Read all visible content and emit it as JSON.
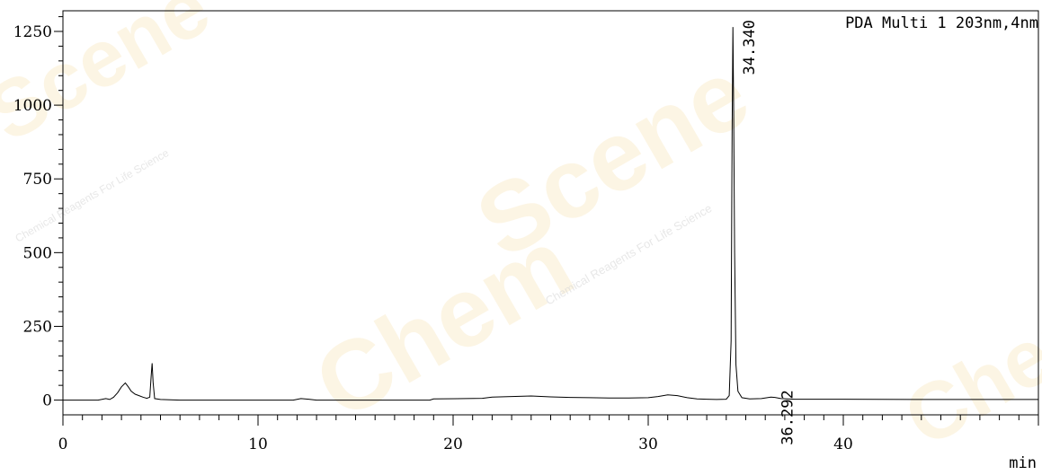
{
  "chart_data": {
    "type": "line",
    "detector_label": "PDA Multi 1 203nm,4nm",
    "x_unit": "min",
    "xlim": [
      0,
      50
    ],
    "ylim": [
      -50,
      1320
    ],
    "x_ticks": [
      0,
      10,
      20,
      30,
      40
    ],
    "y_ticks": [
      0,
      250,
      500,
      750,
      1000,
      1250
    ],
    "peaks": [
      {
        "label": "34.340",
        "rt": 34.34,
        "height": 1265
      },
      {
        "label": "36.292",
        "rt": 36.292,
        "height": 10
      }
    ],
    "series": [
      {
        "x": [
          0,
          1.8,
          2.2,
          2.4,
          2.6,
          2.8,
          3.0,
          3.2,
          3.35,
          3.5,
          3.7,
          3.9,
          4.1,
          4.3,
          4.45,
          4.52,
          4.57,
          4.62,
          4.7,
          5.0,
          6,
          8,
          10,
          11.8,
          12.2,
          12.6,
          13,
          16,
          18.8,
          19,
          21.5,
          22,
          23,
          24,
          25,
          26,
          27,
          28,
          29,
          30,
          30.5,
          31,
          31.5,
          32,
          32.5,
          33,
          33.5,
          34.0,
          34.15,
          34.25,
          34.3,
          34.34,
          34.38,
          34.43,
          34.5,
          34.6,
          34.8,
          35.2,
          35.8,
          36.1,
          36.29,
          36.5,
          36.8,
          37.5,
          40,
          45,
          50
        ],
        "y": [
          0,
          0,
          5,
          2,
          10,
          25,
          45,
          58,
          45,
          30,
          20,
          15,
          10,
          6,
          10,
          80,
          125,
          60,
          5,
          2,
          0,
          0,
          0,
          0,
          5,
          3,
          0,
          0,
          0,
          4,
          6,
          10,
          12,
          14,
          11,
          9,
          8,
          7,
          7,
          8,
          12,
          18,
          15,
          8,
          4,
          3,
          2,
          3,
          15,
          200,
          900,
          1265,
          1000,
          500,
          120,
          30,
          8,
          4,
          5,
          8,
          10,
          9,
          5,
          3,
          3,
          2,
          2
        ]
      }
    ],
    "watermark": [
      "Chem",
      "Scene",
      "Chemical Reagents For Life Science"
    ]
  }
}
